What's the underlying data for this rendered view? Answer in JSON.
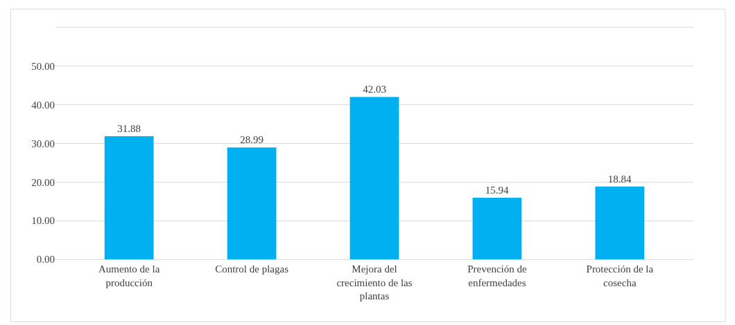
{
  "chart_data": {
    "type": "bar",
    "categories": [
      "Aumento de la producción",
      "Control de plagas",
      "Mejora del crecimiento de las plantas",
      "Prevención de enfermedades",
      "Protección de la cosecha"
    ],
    "values": [
      31.88,
      28.99,
      42.03,
      15.94,
      18.84
    ],
    "color": "#00b0f0",
    "ylim": [
      0,
      60
    ],
    "yticks": [
      {
        "value": 0,
        "label": "0.00"
      },
      {
        "value": 10,
        "label": "10.00"
      },
      {
        "value": 20,
        "label": "20.00"
      },
      {
        "value": 30,
        "label": "30.00"
      },
      {
        "value": 40,
        "label": "40.00"
      },
      {
        "value": 50,
        "label": "50.00"
      },
      {
        "value": 60,
        "label": null
      }
    ],
    "grid": "y",
    "data_labels": true
  }
}
